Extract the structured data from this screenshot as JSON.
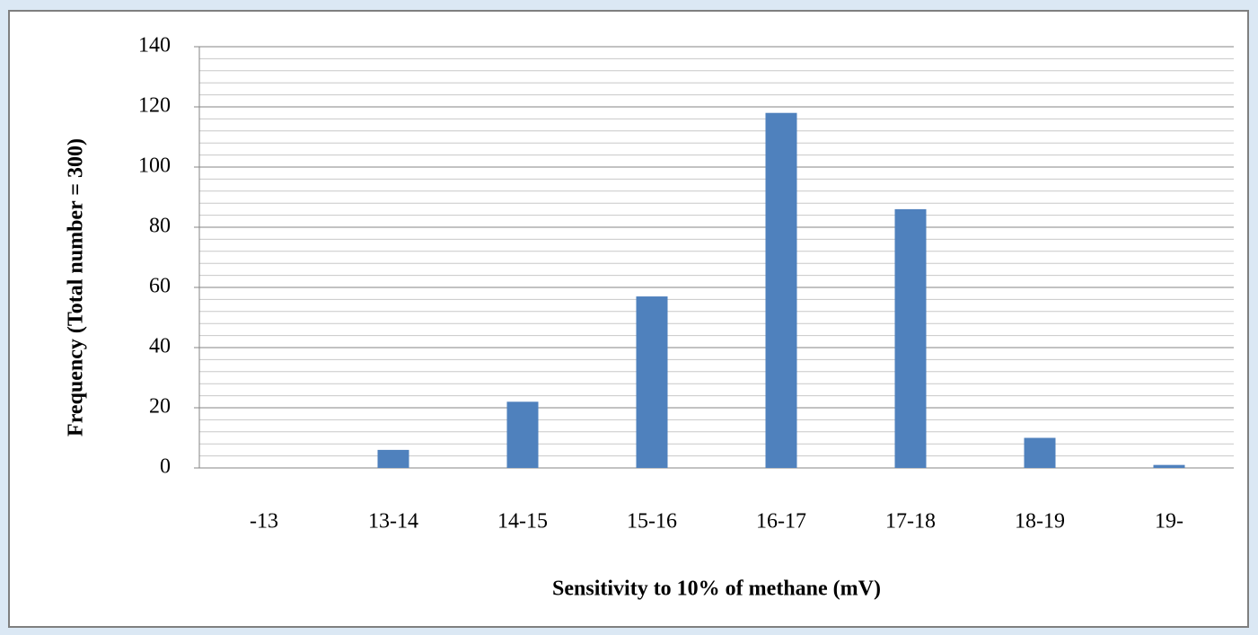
{
  "chart_data": {
    "type": "bar",
    "x_label": "Sensitivity to 10% of methane (mV)",
    "y_label": "Frequency (Total number = 300)",
    "categories": [
      "-13",
      "13-14",
      "14-15",
      "15-16",
      "16-17",
      "17-18",
      "18-19",
      "19-"
    ],
    "values": [
      0,
      6,
      22,
      57,
      118,
      86,
      10,
      1
    ],
    "color": "#4f81bd",
    "ylim": [
      0,
      140
    ],
    "yticks": [
      0,
      20,
      40,
      60,
      80,
      100,
      120,
      140
    ],
    "grid": true,
    "minor_grid_step": 4
  }
}
